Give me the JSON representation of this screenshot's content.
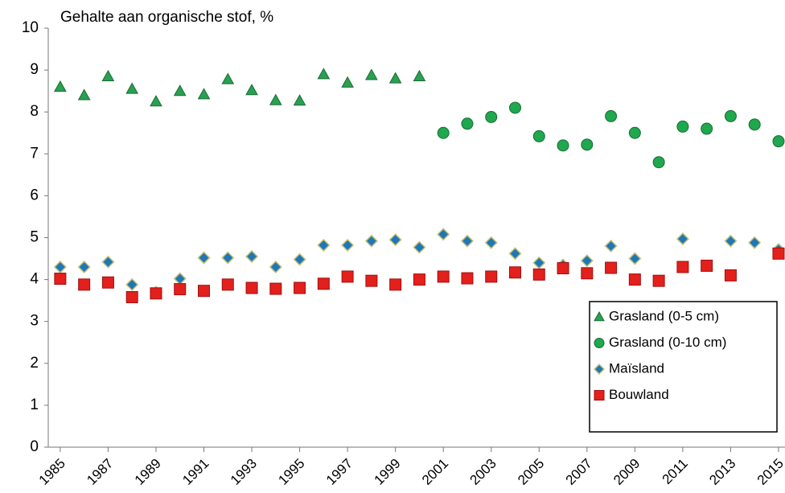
{
  "chart_data": {
    "type": "scatter",
    "y_label": "Gehalte aan organische stof, %",
    "xlim": [
      1984.5,
      2015.27
    ],
    "xticks": [
      1985,
      1987,
      1989,
      1991,
      1993,
      1995,
      1997,
      1999,
      2001,
      2003,
      2005,
      2007,
      2009,
      2011,
      2013,
      2015
    ],
    "ylim": [
      0,
      10
    ],
    "yticks": [
      0,
      1,
      2,
      3,
      4,
      5,
      6,
      7,
      8,
      9,
      10
    ],
    "grid": false,
    "legend": "lower right",
    "series": [
      {
        "name": "Grasland (0-5 cm)",
        "marker": "triangle",
        "color": "#2aa052",
        "x": [
          1985,
          1986,
          1987,
          1988,
          1989,
          1990,
          1991,
          1992,
          1993,
          1994,
          1995,
          1996,
          1997,
          1998,
          1999,
          2000
        ],
        "values": [
          8.6,
          8.4,
          8.85,
          8.55,
          8.25,
          8.5,
          8.42,
          8.78,
          8.52,
          8.28,
          8.27,
          8.9,
          8.7,
          8.88,
          8.8,
          8.85
        ]
      },
      {
        "name": "Grasland (0-10 cm)",
        "marker": "circle",
        "color": "#1fa84e",
        "x": [
          2001,
          2002,
          2003,
          2004,
          2005,
          2006,
          2007,
          2008,
          2009,
          2010,
          2011,
          2012,
          2013,
          2014,
          2015
        ],
        "values": [
          7.5,
          7.72,
          7.88,
          8.1,
          7.42,
          7.2,
          7.22,
          7.9,
          7.5,
          6.8,
          7.65,
          7.6,
          7.9,
          7.7,
          7.3
        ]
      },
      {
        "name": "Maïsland",
        "marker": "diamond",
        "color": "#1f78b4",
        "x": [
          1985,
          1986,
          1987,
          1988,
          1989,
          1990,
          1991,
          1992,
          1993,
          1994,
          1995,
          1996,
          1997,
          1998,
          1999,
          2000,
          2001,
          2002,
          2003,
          2004,
          2005,
          2006,
          2007,
          2008,
          2009,
          2010,
          2011,
          2012,
          2013,
          2014,
          2015
        ],
        "values": [
          4.3,
          4.3,
          4.42,
          3.88,
          3.7,
          4.02,
          4.52,
          4.52,
          4.55,
          4.3,
          4.48,
          4.82,
          4.82,
          4.92,
          4.95,
          4.77,
          5.08,
          4.92,
          4.88,
          4.62,
          4.4,
          4.35,
          4.45,
          4.8,
          4.5,
          null,
          4.97,
          null,
          4.92,
          4.88,
          4.72
        ]
      },
      {
        "name": "Bouwland",
        "marker": "square",
        "color": "#e3201c",
        "x": [
          1985,
          1986,
          1987,
          1988,
          1989,
          1990,
          1991,
          1992,
          1993,
          1994,
          1995,
          1996,
          1997,
          1998,
          1999,
          2000,
          2001,
          2002,
          2003,
          2004,
          2005,
          2006,
          2007,
          2008,
          2009,
          2010,
          2011,
          2012,
          2013,
          2014,
          2015
        ],
        "values": [
          4.02,
          3.88,
          3.93,
          3.58,
          3.67,
          3.77,
          3.73,
          3.88,
          3.8,
          3.78,
          3.8,
          3.9,
          4.07,
          3.97,
          3.88,
          4.0,
          4.07,
          4.03,
          4.07,
          4.17,
          4.12,
          4.27,
          4.15,
          4.28,
          4.0,
          3.97,
          4.3,
          4.33,
          4.1,
          null,
          4.62
        ]
      }
    ]
  }
}
